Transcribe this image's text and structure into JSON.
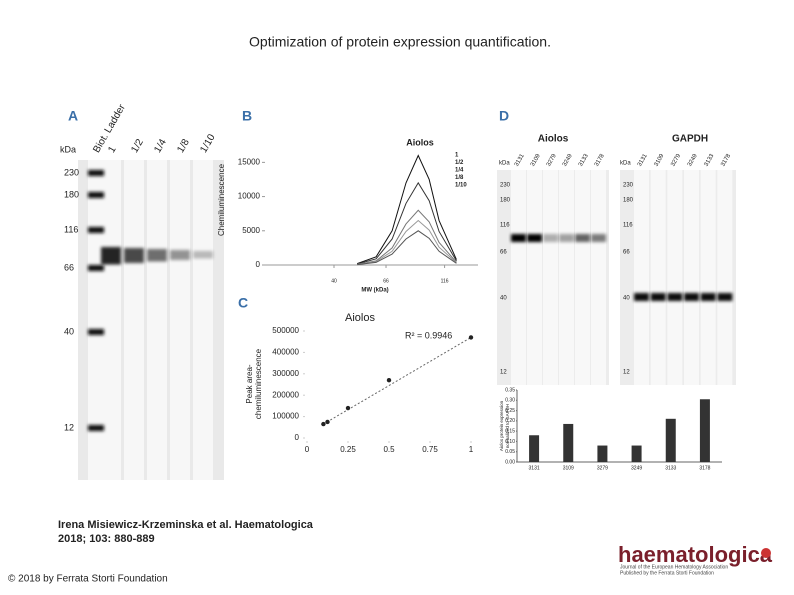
{
  "title": "Optimization of protein expression quantification.",
  "citation": [
    "Irena Misiewicz-Krzeminska et al. Haematologica",
    "2018; 103: 880-889"
  ],
  "copyright": "© 2018 by Ferrata Storti Foundation",
  "logo": {
    "name": "haematologica",
    "tagline": [
      "Journal of the European Hematology Association",
      "Published by the Ferrata Storti Foundation"
    ]
  },
  "blots": {
    "A": {
      "letter": "A",
      "unit": "kDa",
      "lanes": [
        "Biot. Ladder",
        "1",
        "1/2",
        "1/4",
        "1/8",
        "1/10"
      ],
      "markers": [
        "230",
        "180",
        "116",
        "66",
        "40",
        "12"
      ]
    },
    "D": {
      "letter": "D",
      "unit": "kDa",
      "proteins": [
        "Aiolos",
        "GAPDH"
      ],
      "lanes": [
        "3131",
        "3109",
        "3279",
        "3249",
        "3133",
        "3178"
      ],
      "markers": [
        "230",
        "180",
        "116",
        "66",
        "40",
        "12"
      ]
    }
  },
  "chart_data": [
    {
      "type": "line",
      "letter": "B",
      "title": "Aiolos",
      "xlabel": "MW (kDa)",
      "ylabel": "Chemiluminescence",
      "x": [
        50,
        60,
        70,
        80,
        90,
        100,
        110,
        130
      ],
      "xlog": true,
      "xlim": [
        20,
        160
      ],
      "xticks": [
        40,
        66,
        116
      ],
      "ylim": [
        0,
        19000
      ],
      "yticks": [
        0,
        5000,
        10000,
        15000
      ],
      "legend": "top-right",
      "series": [
        {
          "name": "1",
          "color": "#111111",
          "values": [
            200,
            1200,
            5000,
            12000,
            16000,
            12500,
            6500,
            800
          ]
        },
        {
          "name": "1/2",
          "color": "#333333",
          "values": [
            150,
            900,
            3800,
            9000,
            12000,
            9400,
            4900,
            600
          ]
        },
        {
          "name": "1/4",
          "color": "#777777",
          "values": [
            100,
            600,
            2500,
            6000,
            8000,
            6300,
            3300,
            400
          ]
        },
        {
          "name": "1/8",
          "color": "#999999",
          "values": [
            80,
            500,
            2000,
            4900,
            6500,
            5100,
            2600,
            330
          ]
        },
        {
          "name": "1/10",
          "color": "#555555",
          "values": [
            60,
            380,
            1600,
            3800,
            5000,
            3900,
            2000,
            250
          ]
        }
      ]
    },
    {
      "type": "scatter",
      "letter": "C",
      "title": "Aiolos",
      "ylabel": [
        "Peak area-",
        "chemiluminescence"
      ],
      "annotation": "R² = 0.9946",
      "x": [
        0.1,
        0.125,
        0.25,
        0.5,
        1
      ],
      "values": [
        65000,
        75000,
        140000,
        270000,
        470000
      ],
      "xlim": [
        0,
        1
      ],
      "xticks": [
        0,
        0.25,
        0.5,
        0.75,
        1
      ],
      "ylim": [
        0,
        500000
      ],
      "yticks": [
        0,
        100000,
        200000,
        300000,
        400000,
        500000
      ],
      "color": "#222222"
    },
    {
      "type": "bar",
      "ylabel": [
        "Aiolos protein expression",
        "normalized to GAPDH"
      ],
      "categories": [
        "3131",
        "3109",
        "3279",
        "3249",
        "3133",
        "3178"
      ],
      "values": [
        0.13,
        0.185,
        0.08,
        0.08,
        0.21,
        0.305
      ],
      "ylim": [
        0,
        0.35
      ],
      "yticks": [
        {
          "value": 0,
          "label": "0.00"
        },
        0.05,
        {
          "value": 0.1,
          "label": "0.10"
        },
        0.15,
        {
          "value": 0.2,
          "label": "0.20"
        },
        0.25,
        {
          "value": 0.3,
          "label": "0.30"
        },
        0.35
      ],
      "color": "#333333"
    }
  ]
}
